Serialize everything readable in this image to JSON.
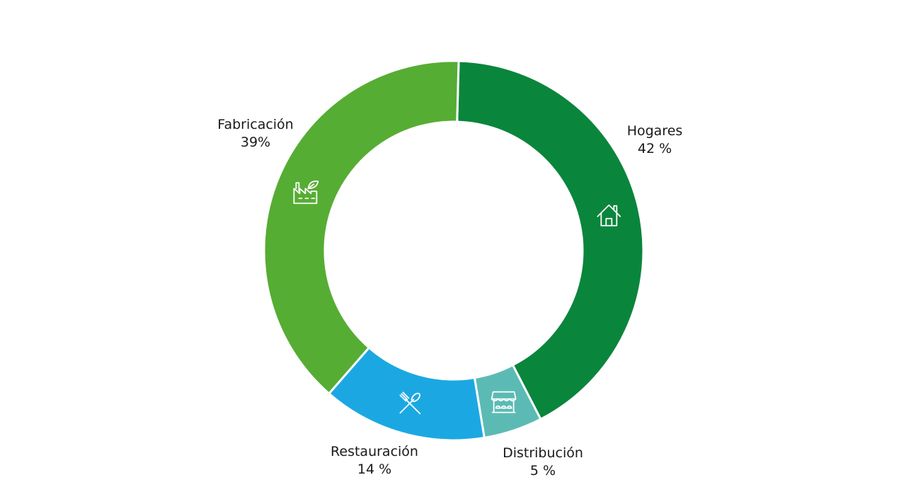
{
  "chart_data": {
    "type": "pie",
    "variant": "donut",
    "categories": [
      "Hogares",
      "Distribución",
      "Restauración",
      "Fabricación"
    ],
    "values": [
      42,
      5,
      14,
      39
    ],
    "value_labels": [
      "42 %",
      "5 %",
      "14 %",
      "39%"
    ],
    "colors": [
      "#0a853c",
      "#5bbbb4",
      "#1ba8e2",
      "#56ad33"
    ],
    "icons": [
      "house-icon",
      "market-stall-icon",
      "fork-spoon-icon",
      "factory-leaf-icon"
    ],
    "title": "",
    "legend": "none"
  }
}
